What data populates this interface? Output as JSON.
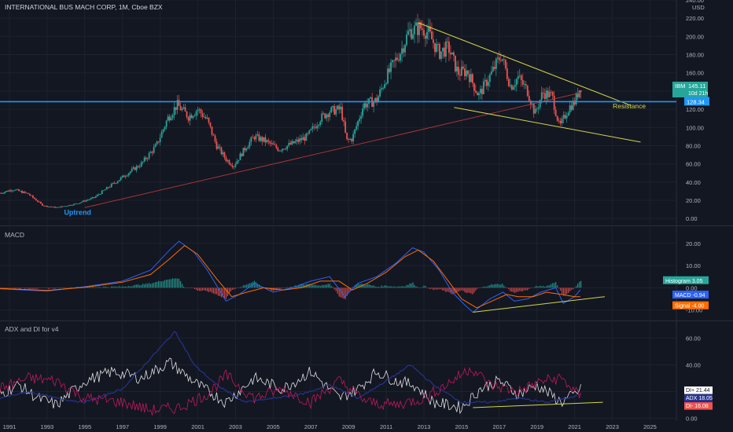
{
  "header": {
    "title": "INTERNATIONAL BUS MACH CORP, 1M, Cboe BZX"
  },
  "colors": {
    "background": "#131722",
    "up": "#26a69a",
    "down": "#ef5350",
    "grid": "#1e222d",
    "axis_text": "#b2b5be",
    "resistance": "#2196f3",
    "trendline": "#d4d44a",
    "uptrend": "#b33a3a",
    "macd": "#2962ff",
    "signal": "#ff6d00",
    "di_plus": "#e0e0e0",
    "adx": "#283593",
    "di_minus": "#c2185b"
  },
  "chart_data": [
    {
      "type": "candlestick",
      "title": "INTERNATIONAL BUS MACH CORP, 1M, Cboe BZX",
      "currency_label": "USD",
      "ylim": [
        -5,
        240
      ],
      "y_ticks": [
        "0.00",
        "20.00",
        "40.00",
        "60.00",
        "80.00",
        "100.00",
        "120.00",
        "140.00",
        "160.00",
        "180.00",
        "200.00",
        "220.00",
        "240.00"
      ],
      "x_ticks": [
        "1991",
        "1993",
        "1995",
        "1997",
        "1999",
        "2001",
        "2003",
        "2005",
        "2007",
        "2009",
        "2011",
        "2013",
        "2015",
        "2017",
        "2019",
        "2021",
        "2023",
        "2025"
      ],
      "price_path": [
        [
          1990.5,
          28
        ],
        [
          1991.2,
          32
        ],
        [
          1992,
          27
        ],
        [
          1992.8,
          14
        ],
        [
          1993.5,
          12
        ],
        [
          1994.5,
          16
        ],
        [
          1995.5,
          23
        ],
        [
          1996.5,
          38
        ],
        [
          1997.3,
          50
        ],
        [
          1998,
          60
        ],
        [
          1998.8,
          80
        ],
        [
          1999.4,
          110
        ],
        [
          1999.9,
          125
        ],
        [
          2000.5,
          112
        ],
        [
          2001,
          120
        ],
        [
          2001.5,
          108
        ],
        [
          2002,
          80
        ],
        [
          2002.5,
          65
        ],
        [
          2002.9,
          58
        ],
        [
          2003.6,
          80
        ],
        [
          2004,
          90
        ],
        [
          2004.6,
          85
        ],
        [
          2005.3,
          76
        ],
        [
          2006,
          82
        ],
        [
          2006.8,
          90
        ],
        [
          2007.5,
          110
        ],
        [
          2008,
          118
        ],
        [
          2008.6,
          120
        ],
        [
          2008.9,
          85
        ],
        [
          2009.2,
          88
        ],
        [
          2009.8,
          125
        ],
        [
          2010.5,
          130
        ],
        [
          2011,
          155
        ],
        [
          2011.8,
          185
        ],
        [
          2012.2,
          205
        ],
        [
          2012.8,
          210
        ],
        [
          2013.2,
          205
        ],
        [
          2013.8,
          182
        ],
        [
          2014.3,
          188
        ],
        [
          2014.8,
          160
        ],
        [
          2015.3,
          162
        ],
        [
          2015.9,
          135
        ],
        [
          2016.6,
          160
        ],
        [
          2017.1,
          180
        ],
        [
          2017.6,
          145
        ],
        [
          2018,
          155
        ],
        [
          2018.5,
          140
        ],
        [
          2018.9,
          115
        ],
        [
          2019.3,
          138
        ],
        [
          2019.8,
          135
        ],
        [
          2020.2,
          100
        ],
        [
          2020.7,
          122
        ],
        [
          2021,
          128
        ],
        [
          2021.3,
          145
        ]
      ],
      "annotations": [
        {
          "text": "Uptrend",
          "year": 1993.9,
          "price": 4
        },
        {
          "text": "Resistance",
          "year": 2023.9,
          "price": 121
        }
      ],
      "resistance_level": 128.34,
      "labels": [
        {
          "name": "IBM",
          "value": "145.11",
          "sub": "10d 21h"
        },
        {
          "name": "",
          "value": "128.34"
        }
      ]
    },
    {
      "type": "line",
      "title": "MACD",
      "ylim": [
        -14,
        27
      ],
      "y_ticks": [
        "20.00",
        "10.00",
        "0.00",
        "-10.00"
      ],
      "series": [
        {
          "name": "MACD",
          "points": [
            [
              1990.5,
              -0.5
            ],
            [
              1993,
              -1.5
            ],
            [
              1995,
              0.5
            ],
            [
              1997,
              3
            ],
            [
              1998.5,
              8
            ],
            [
              1999.5,
              17
            ],
            [
              2000,
              21
            ],
            [
              2000.8,
              16
            ],
            [
              2001.5,
              8
            ],
            [
              2002.5,
              -6
            ],
            [
              2003.2,
              -3
            ],
            [
              2004,
              2
            ],
            [
              2005,
              -2
            ],
            [
              2006,
              0
            ],
            [
              2007,
              3
            ],
            [
              2008,
              5
            ],
            [
              2008.8,
              -4
            ],
            [
              2009.5,
              2
            ],
            [
              2010.5,
              5
            ],
            [
              2011.5,
              11
            ],
            [
              2012.4,
              18
            ],
            [
              2013,
              16
            ],
            [
              2013.8,
              8
            ],
            [
              2014.5,
              -2
            ],
            [
              2015.2,
              -8
            ],
            [
              2015.6,
              -11
            ],
            [
              2016.5,
              -5
            ],
            [
              2017.2,
              -2
            ],
            [
              2017.8,
              -6
            ],
            [
              2018.5,
              -5
            ],
            [
              2019.2,
              -2
            ],
            [
              2020,
              0
            ],
            [
              2020.4,
              -7
            ],
            [
              2021,
              -4
            ],
            [
              2021.3,
              -0.94
            ]
          ]
        },
        {
          "name": "Signal",
          "points": [
            [
              1990.5,
              -0.3
            ],
            [
              1993,
              -1.2
            ],
            [
              1995,
              0.2
            ],
            [
              1997,
              2.5
            ],
            [
              1998.5,
              6
            ],
            [
              1999.5,
              13
            ],
            [
              2000.3,
              19
            ],
            [
              2001,
              15
            ],
            [
              2002,
              4
            ],
            [
              2002.8,
              -4
            ],
            [
              2003.6,
              -2
            ],
            [
              2004.5,
              0
            ],
            [
              2005.5,
              -1
            ],
            [
              2006.5,
              0
            ],
            [
              2007.5,
              3
            ],
            [
              2008.5,
              3
            ],
            [
              2009.2,
              -1
            ],
            [
              2010,
              2
            ],
            [
              2011,
              7
            ],
            [
              2012,
              14
            ],
            [
              2012.7,
              17
            ],
            [
              2013.5,
              12
            ],
            [
              2014.3,
              3
            ],
            [
              2015,
              -5
            ],
            [
              2015.8,
              -9
            ],
            [
              2016.6,
              -6
            ],
            [
              2017.4,
              -3
            ],
            [
              2018,
              -4
            ],
            [
              2018.8,
              -4
            ],
            [
              2019.5,
              -2
            ],
            [
              2020.3,
              -3
            ],
            [
              2021,
              -4
            ],
            [
              2021.3,
              -4.0
            ]
          ]
        }
      ],
      "labels": [
        {
          "name": "Histogram",
          "value": "3.05"
        },
        {
          "name": "MACD",
          "value": "-0.94"
        },
        {
          "name": "Signal",
          "value": "-4.00"
        }
      ]
    },
    {
      "type": "line",
      "title": "ADX and DI for v4",
      "ylim": [
        -2,
        72
      ],
      "y_ticks": [
        "60.00",
        "40.00",
        "20.00",
        "0.00"
      ],
      "series": [
        {
          "name": "DI+",
          "points": [
            [
              1990.5,
              18
            ],
            [
              1991.5,
              25
            ],
            [
              1992.5,
              15
            ],
            [
              1993.5,
              10
            ],
            [
              1995,
              28
            ],
            [
              1996.5,
              35
            ],
            [
              1998,
              30
            ],
            [
              1999.5,
              42
            ],
            [
              2001,
              25
            ],
            [
              2002.5,
              12
            ],
            [
              2004,
              30
            ],
            [
              2005.5,
              22
            ],
            [
              2007,
              35
            ],
            [
              2008.5,
              15
            ],
            [
              2009.5,
              22
            ],
            [
              2010.5,
              35
            ],
            [
              2011.5,
              28
            ],
            [
              2012.5,
              25
            ],
            [
              2013.5,
              12
            ],
            [
              2015,
              8
            ],
            [
              2016,
              22
            ],
            [
              2017,
              28
            ],
            [
              2018,
              18
            ],
            [
              2019,
              25
            ],
            [
              2020.3,
              12
            ],
            [
              2021,
              18
            ],
            [
              2021.3,
              21.44
            ]
          ]
        },
        {
          "name": "ADX",
          "points": [
            [
              1990.5,
              15
            ],
            [
              1992,
              20
            ],
            [
              1993.5,
              15
            ],
            [
              1995,
              12
            ],
            [
              1997,
              22
            ],
            [
              1998.5,
              45
            ],
            [
              1999.8,
              65
            ],
            [
              2000.8,
              40
            ],
            [
              2002,
              25
            ],
            [
              2003.5,
              12
            ],
            [
              2005,
              15
            ],
            [
              2006.5,
              18
            ],
            [
              2008,
              25
            ],
            [
              2009.5,
              15
            ],
            [
              2011,
              28
            ],
            [
              2012.3,
              40
            ],
            [
              2013.5,
              25
            ],
            [
              2015,
              12
            ],
            [
              2016.5,
              12
            ],
            [
              2018,
              15
            ],
            [
              2019.5,
              12
            ],
            [
              2020.5,
              15
            ],
            [
              2021.3,
              18.05
            ]
          ]
        },
        {
          "name": "DI-",
          "points": [
            [
              1990.5,
              22
            ],
            [
              1992,
              30
            ],
            [
              1993.5,
              28
            ],
            [
              1995,
              15
            ],
            [
              1997,
              12
            ],
            [
              1998.5,
              6
            ],
            [
              2000,
              8
            ],
            [
              2001.5,
              18
            ],
            [
              2002.5,
              32
            ],
            [
              2004,
              15
            ],
            [
              2005.5,
              22
            ],
            [
              2007,
              12
            ],
            [
              2008.5,
              28
            ],
            [
              2010,
              12
            ],
            [
              2011.5,
              10
            ],
            [
              2013,
              15
            ],
            [
              2014.5,
              28
            ],
            [
              2015.5,
              38
            ],
            [
              2016.5,
              25
            ],
            [
              2018,
              20
            ],
            [
              2019.3,
              28
            ],
            [
              2020.3,
              30
            ],
            [
              2021,
              20
            ],
            [
              2021.3,
              16.08
            ]
          ]
        }
      ],
      "labels": [
        {
          "name": "DI+",
          "value": "21.44"
        },
        {
          "name": "ADX",
          "value": "18.05"
        },
        {
          "name": "DI-",
          "value": "16.08"
        }
      ]
    }
  ]
}
